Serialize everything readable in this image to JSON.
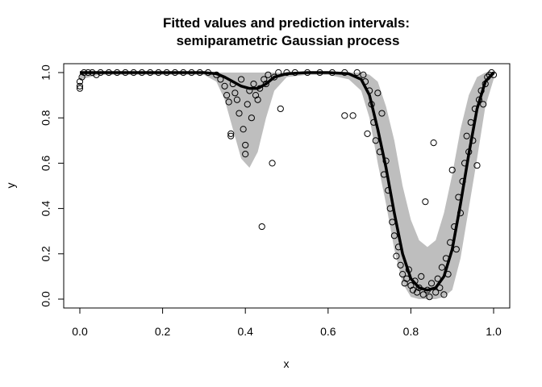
{
  "chart_data": {
    "type": "scatter",
    "title_line1": "Fitted values and prediction intervals:",
    "title_line2": "semiparametric Gaussian process",
    "xlabel": "x",
    "ylabel": "y",
    "xlim": [
      0,
      1
    ],
    "ylim": [
      0,
      1
    ],
    "x_ticks": [
      0.0,
      0.2,
      0.4,
      0.6,
      0.8,
      1.0
    ],
    "x_tick_labels": [
      "0.0",
      "0.2",
      "0.4",
      "0.6",
      "0.8",
      "1.0"
    ],
    "y_ticks": [
      0.0,
      0.2,
      0.4,
      0.6,
      0.8,
      1.0
    ],
    "y_tick_labels": [
      "0.0",
      "0.2",
      "0.4",
      "0.6",
      "0.8",
      "1.0"
    ],
    "grid": false,
    "legend": "none",
    "band_color": "#bebebe",
    "line_color": "#000000",
    "point_color": "#000000",
    "fitted_line": {
      "x": [
        0.0,
        0.05,
        0.1,
        0.15,
        0.2,
        0.25,
        0.3,
        0.33,
        0.35,
        0.37,
        0.39,
        0.41,
        0.43,
        0.45,
        0.47,
        0.5,
        0.55,
        0.6,
        0.65,
        0.68,
        0.7,
        0.72,
        0.74,
        0.76,
        0.78,
        0.8,
        0.82,
        0.84,
        0.86,
        0.88,
        0.9,
        0.92,
        0.94,
        0.96,
        0.98,
        1.0
      ],
      "y": [
        1.0,
        1.0,
        1.0,
        1.0,
        1.0,
        1.0,
        1.0,
        0.995,
        0.98,
        0.96,
        0.94,
        0.93,
        0.93,
        0.95,
        0.98,
        0.995,
        1.0,
        1.0,
        0.995,
        0.97,
        0.9,
        0.75,
        0.58,
        0.38,
        0.2,
        0.09,
        0.05,
        0.04,
        0.05,
        0.1,
        0.22,
        0.42,
        0.64,
        0.84,
        0.96,
        1.0
      ]
    },
    "prediction_band": {
      "x": [
        0.0,
        0.05,
        0.1,
        0.15,
        0.2,
        0.25,
        0.3,
        0.33,
        0.35,
        0.37,
        0.39,
        0.41,
        0.43,
        0.45,
        0.47,
        0.5,
        0.55,
        0.6,
        0.65,
        0.68,
        0.7,
        0.72,
        0.74,
        0.76,
        0.78,
        0.8,
        0.82,
        0.84,
        0.86,
        0.88,
        0.9,
        0.92,
        0.94,
        0.96,
        0.98,
        1.0
      ],
      "lower": [
        0.97,
        0.99,
        0.99,
        0.99,
        0.99,
        0.99,
        0.99,
        0.96,
        0.88,
        0.75,
        0.62,
        0.58,
        0.65,
        0.8,
        0.92,
        0.98,
        0.99,
        0.99,
        0.97,
        0.92,
        0.8,
        0.6,
        0.42,
        0.22,
        0.07,
        0.01,
        0.0,
        0.0,
        0.0,
        0.01,
        0.04,
        0.18,
        0.4,
        0.62,
        0.85,
        0.97
      ],
      "upper": [
        1.0,
        1.0,
        1.0,
        1.0,
        1.0,
        1.0,
        1.0,
        1.0,
        1.0,
        1.0,
        1.0,
        1.0,
        1.0,
        1.0,
        1.0,
        1.0,
        1.0,
        1.0,
        1.0,
        1.0,
        0.99,
        0.96,
        0.85,
        0.7,
        0.5,
        0.35,
        0.26,
        0.23,
        0.26,
        0.38,
        0.55,
        0.75,
        0.9,
        0.98,
        1.0,
        1.0
      ]
    },
    "points": [
      {
        "x": 0.0,
        "y": 0.93
      },
      {
        "x": 0.0,
        "y": 0.94
      },
      {
        "x": 0.0,
        "y": 0.96
      },
      {
        "x": 0.005,
        "y": 0.98
      },
      {
        "x": 0.01,
        "y": 1.0
      },
      {
        "x": 0.02,
        "y": 1.0
      },
      {
        "x": 0.03,
        "y": 1.0
      },
      {
        "x": 0.04,
        "y": 0.99
      },
      {
        "x": 0.05,
        "y": 1.0
      },
      {
        "x": 0.07,
        "y": 1.0
      },
      {
        "x": 0.09,
        "y": 1.0
      },
      {
        "x": 0.11,
        "y": 1.0
      },
      {
        "x": 0.13,
        "y": 1.0
      },
      {
        "x": 0.15,
        "y": 1.0
      },
      {
        "x": 0.17,
        "y": 1.0
      },
      {
        "x": 0.19,
        "y": 1.0
      },
      {
        "x": 0.21,
        "y": 1.0
      },
      {
        "x": 0.23,
        "y": 1.0
      },
      {
        "x": 0.25,
        "y": 1.0
      },
      {
        "x": 0.27,
        "y": 1.0
      },
      {
        "x": 0.29,
        "y": 1.0
      },
      {
        "x": 0.31,
        "y": 1.0
      },
      {
        "x": 0.33,
        "y": 0.99
      },
      {
        "x": 0.34,
        "y": 0.97
      },
      {
        "x": 0.35,
        "y": 0.94
      },
      {
        "x": 0.355,
        "y": 0.9
      },
      {
        "x": 0.36,
        "y": 0.87
      },
      {
        "x": 0.365,
        "y": 0.73
      },
      {
        "x": 0.365,
        "y": 0.72
      },
      {
        "x": 0.37,
        "y": 0.95
      },
      {
        "x": 0.375,
        "y": 0.91
      },
      {
        "x": 0.38,
        "y": 0.88
      },
      {
        "x": 0.385,
        "y": 0.82
      },
      {
        "x": 0.39,
        "y": 0.97
      },
      {
        "x": 0.395,
        "y": 0.75
      },
      {
        "x": 0.4,
        "y": 0.68
      },
      {
        "x": 0.4,
        "y": 0.64
      },
      {
        "x": 0.405,
        "y": 0.86
      },
      {
        "x": 0.41,
        "y": 0.92
      },
      {
        "x": 0.415,
        "y": 0.8
      },
      {
        "x": 0.42,
        "y": 0.95
      },
      {
        "x": 0.425,
        "y": 0.9
      },
      {
        "x": 0.43,
        "y": 0.88
      },
      {
        "x": 0.435,
        "y": 0.93
      },
      {
        "x": 0.44,
        "y": 0.32
      },
      {
        "x": 0.445,
        "y": 0.97
      },
      {
        "x": 0.45,
        "y": 0.95
      },
      {
        "x": 0.455,
        "y": 0.99
      },
      {
        "x": 0.465,
        "y": 0.6
      },
      {
        "x": 0.47,
        "y": 0.98
      },
      {
        "x": 0.48,
        "y": 1.0
      },
      {
        "x": 0.485,
        "y": 0.84
      },
      {
        "x": 0.5,
        "y": 1.0
      },
      {
        "x": 0.52,
        "y": 1.0
      },
      {
        "x": 0.55,
        "y": 1.0
      },
      {
        "x": 0.58,
        "y": 1.0
      },
      {
        "x": 0.61,
        "y": 1.0
      },
      {
        "x": 0.64,
        "y": 1.0
      },
      {
        "x": 0.64,
        "y": 0.81
      },
      {
        "x": 0.66,
        "y": 0.81
      },
      {
        "x": 0.67,
        "y": 1.0
      },
      {
        "x": 0.685,
        "y": 0.99
      },
      {
        "x": 0.69,
        "y": 0.96
      },
      {
        "x": 0.695,
        "y": 0.73
      },
      {
        "x": 0.7,
        "y": 0.92
      },
      {
        "x": 0.705,
        "y": 0.86
      },
      {
        "x": 0.71,
        "y": 0.78
      },
      {
        "x": 0.715,
        "y": 0.7
      },
      {
        "x": 0.72,
        "y": 0.91
      },
      {
        "x": 0.725,
        "y": 0.65
      },
      {
        "x": 0.73,
        "y": 0.82
      },
      {
        "x": 0.735,
        "y": 0.55
      },
      {
        "x": 0.74,
        "y": 0.61
      },
      {
        "x": 0.745,
        "y": 0.48
      },
      {
        "x": 0.75,
        "y": 0.4
      },
      {
        "x": 0.755,
        "y": 0.34
      },
      {
        "x": 0.76,
        "y": 0.28
      },
      {
        "x": 0.765,
        "y": 0.19
      },
      {
        "x": 0.77,
        "y": 0.23
      },
      {
        "x": 0.775,
        "y": 0.15
      },
      {
        "x": 0.78,
        "y": 0.11
      },
      {
        "x": 0.785,
        "y": 0.07
      },
      {
        "x": 0.79,
        "y": 0.09
      },
      {
        "x": 0.795,
        "y": 0.13
      },
      {
        "x": 0.8,
        "y": 0.06
      },
      {
        "x": 0.805,
        "y": 0.04
      },
      {
        "x": 0.81,
        "y": 0.08
      },
      {
        "x": 0.815,
        "y": 0.03
      },
      {
        "x": 0.82,
        "y": 0.05
      },
      {
        "x": 0.825,
        "y": 0.1
      },
      {
        "x": 0.83,
        "y": 0.02
      },
      {
        "x": 0.835,
        "y": 0.43
      },
      {
        "x": 0.84,
        "y": 0.04
      },
      {
        "x": 0.845,
        "y": 0.01
      },
      {
        "x": 0.85,
        "y": 0.07
      },
      {
        "x": 0.855,
        "y": 0.69
      },
      {
        "x": 0.86,
        "y": 0.03
      },
      {
        "x": 0.865,
        "y": 0.09
      },
      {
        "x": 0.87,
        "y": 0.05
      },
      {
        "x": 0.875,
        "y": 0.14
      },
      {
        "x": 0.88,
        "y": 0.02
      },
      {
        "x": 0.885,
        "y": 0.18
      },
      {
        "x": 0.89,
        "y": 0.11
      },
      {
        "x": 0.895,
        "y": 0.25
      },
      {
        "x": 0.9,
        "y": 0.57
      },
      {
        "x": 0.905,
        "y": 0.32
      },
      {
        "x": 0.91,
        "y": 0.22
      },
      {
        "x": 0.915,
        "y": 0.45
      },
      {
        "x": 0.92,
        "y": 0.38
      },
      {
        "x": 0.925,
        "y": 0.52
      },
      {
        "x": 0.93,
        "y": 0.6
      },
      {
        "x": 0.935,
        "y": 0.72
      },
      {
        "x": 0.94,
        "y": 0.65
      },
      {
        "x": 0.945,
        "y": 0.78
      },
      {
        "x": 0.95,
        "y": 0.7
      },
      {
        "x": 0.955,
        "y": 0.84
      },
      {
        "x": 0.96,
        "y": 0.59
      },
      {
        "x": 0.965,
        "y": 0.88
      },
      {
        "x": 0.97,
        "y": 0.92
      },
      {
        "x": 0.975,
        "y": 0.86
      },
      {
        "x": 0.98,
        "y": 0.95
      },
      {
        "x": 0.985,
        "y": 0.98
      },
      {
        "x": 0.99,
        "y": 0.99
      },
      {
        "x": 0.995,
        "y": 1.0
      },
      {
        "x": 1.0,
        "y": 0.99
      }
    ]
  }
}
